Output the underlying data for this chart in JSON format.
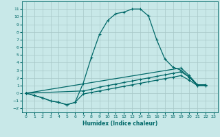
{
  "xlabel": "Humidex (Indice chaleur)",
  "background_color": "#c8e8e8",
  "grid_color": "#a8c8c8",
  "line_color": "#006868",
  "main_x": [
    0,
    1,
    2,
    3,
    4,
    5,
    6,
    7,
    8,
    9,
    10,
    11,
    12,
    13,
    14,
    15,
    16,
    17,
    18,
    19,
    20,
    21,
    22
  ],
  "main_y": [
    0.0,
    -0.3,
    -0.6,
    -1.0,
    -1.2,
    -1.5,
    -1.2,
    1.3,
    4.7,
    7.7,
    9.5,
    10.4,
    10.6,
    11.0,
    11.0,
    10.1,
    7.0,
    4.5,
    3.4,
    3.0,
    2.1,
    1.1,
    1.1
  ],
  "upper_x": [
    0,
    19,
    20,
    21,
    22
  ],
  "upper_y": [
    0.0,
    3.3,
    2.3,
    1.1,
    1.1
  ],
  "mid_x": [
    0,
    7,
    8,
    9,
    10,
    11,
    12,
    13,
    14,
    15,
    16,
    17,
    18,
    19,
    20,
    21,
    22
  ],
  "mid_y": [
    0.0,
    0.3,
    0.5,
    0.8,
    1.0,
    1.2,
    1.4,
    1.6,
    1.8,
    2.0,
    2.2,
    2.4,
    2.6,
    2.8,
    2.1,
    1.0,
    1.0
  ],
  "lower_x": [
    0,
    1,
    2,
    3,
    4,
    5,
    6,
    7,
    8,
    9,
    10,
    11,
    12,
    13,
    14,
    15,
    16,
    17,
    18,
    19,
    20,
    21,
    22
  ],
  "lower_y": [
    0.0,
    -0.3,
    -0.6,
    -1.0,
    -1.2,
    -1.5,
    -1.2,
    -0.1,
    0.1,
    0.3,
    0.5,
    0.7,
    0.9,
    1.1,
    1.3,
    1.5,
    1.7,
    1.9,
    2.1,
    2.3,
    1.7,
    1.0,
    1.0
  ],
  "ylim": [
    -2.5,
    12.0
  ],
  "xlim": [
    -0.5,
    23.5
  ],
  "yticks": [
    -2,
    -1,
    0,
    1,
    2,
    3,
    4,
    5,
    6,
    7,
    8,
    9,
    10,
    11
  ],
  "xticks": [
    0,
    1,
    2,
    3,
    4,
    5,
    6,
    7,
    8,
    9,
    10,
    11,
    12,
    13,
    14,
    15,
    16,
    17,
    18,
    19,
    20,
    21,
    22,
    23
  ]
}
